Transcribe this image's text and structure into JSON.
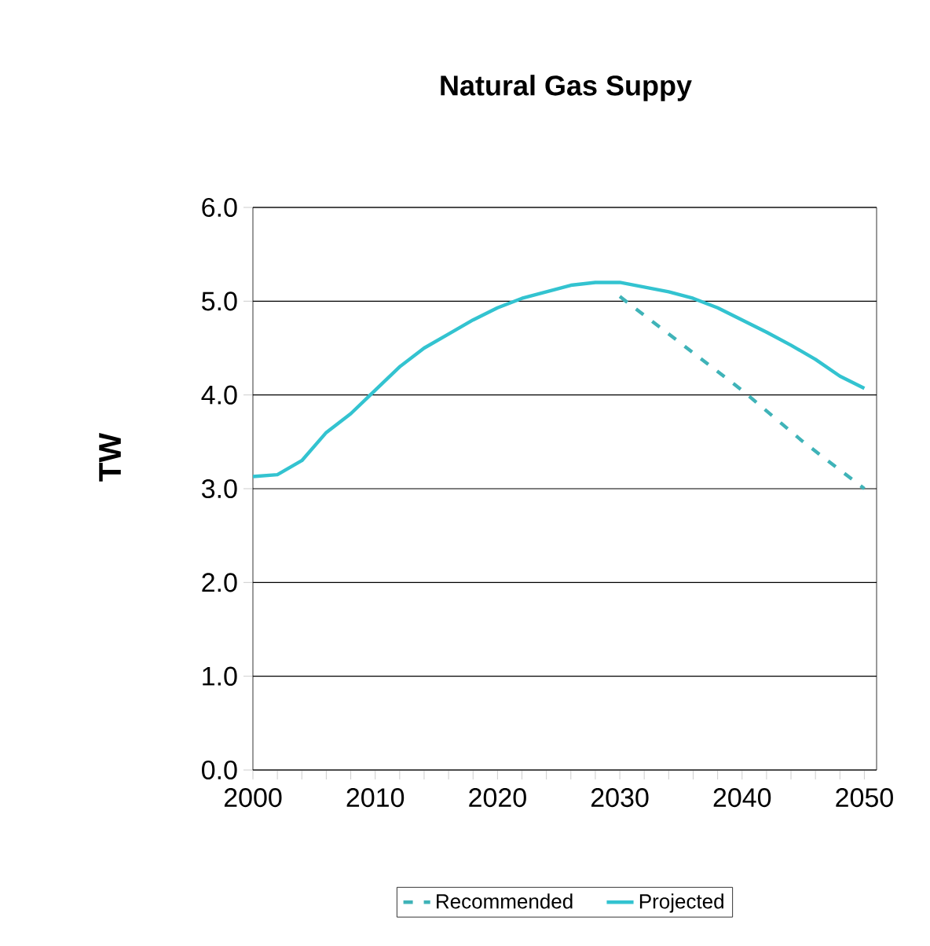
{
  "chart_data": {
    "type": "line",
    "title": "Natural Gas Suppy",
    "ylabel": "TW",
    "xlim": [
      2000,
      2051
    ],
    "ylim": [
      0,
      6
    ],
    "xticks": [
      2000,
      {
        "value": 2002,
        "label": null
      },
      {
        "value": 2004,
        "label": null
      },
      {
        "value": 2006,
        "label": null
      },
      {
        "value": 2008,
        "label": null
      },
      2010,
      {
        "value": 2012,
        "label": null
      },
      {
        "value": 2014,
        "label": null
      },
      {
        "value": 2016,
        "label": null
      },
      {
        "value": 2018,
        "label": null
      },
      2020,
      {
        "value": 2022,
        "label": null
      },
      {
        "value": 2024,
        "label": null
      },
      {
        "value": 2026,
        "label": null
      },
      {
        "value": 2028,
        "label": null
      },
      2030,
      {
        "value": 2032,
        "label": null
      },
      {
        "value": 2034,
        "label": null
      },
      {
        "value": 2036,
        "label": null
      },
      {
        "value": 2038,
        "label": null
      },
      2040,
      {
        "value": 2042,
        "label": null
      },
      {
        "value": 2044,
        "label": null
      },
      {
        "value": 2046,
        "label": null
      },
      {
        "value": 2048,
        "label": null
      },
      2050
    ],
    "yticks": [
      {
        "value": 0,
        "label": "0.0"
      },
      {
        "value": 1,
        "label": "1.0"
      },
      {
        "value": 2,
        "label": "2.0"
      },
      {
        "value": 3,
        "label": "3.0"
      },
      {
        "value": 4,
        "label": "4.0"
      },
      {
        "value": 5,
        "label": "5.0"
      },
      {
        "value": 6,
        "label": "6.0"
      }
    ],
    "grid": "y",
    "legend": "bottom",
    "marker": "none",
    "series": [
      {
        "name": "Recommended",
        "color": "#3fb3b8",
        "line_style": "dashed",
        "x": [
          2030,
          2035,
          2040,
          2045,
          2050
        ],
        "values": [
          5.05,
          4.55,
          4.05,
          3.5,
          3.0
        ]
      },
      {
        "name": "Projected",
        "color": "#33c3d0",
        "line_style": "solid",
        "x": [
          2000,
          2002,
          2004,
          2006,
          2008,
          2010,
          2012,
          2014,
          2016,
          2018,
          2020,
          2022,
          2024,
          2026,
          2028,
          2030,
          2032,
          2034,
          2036,
          2038,
          2040,
          2042,
          2044,
          2046,
          2048,
          2050
        ],
        "values": [
          3.13,
          3.15,
          3.3,
          3.6,
          3.8,
          4.05,
          4.3,
          4.5,
          4.65,
          4.8,
          4.93,
          5.03,
          5.1,
          5.17,
          5.2,
          5.2,
          5.15,
          5.1,
          5.03,
          4.93,
          4.8,
          4.67,
          4.53,
          4.38,
          4.2,
          4.07
        ]
      }
    ]
  }
}
